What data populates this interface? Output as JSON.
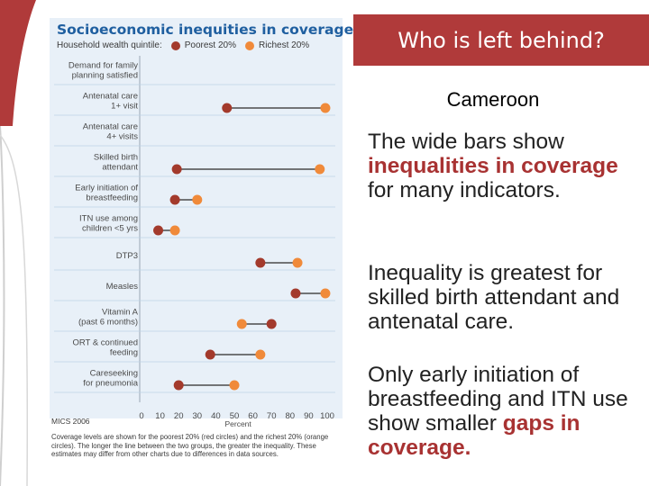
{
  "slide": {
    "title": "Who is left behind?",
    "country": "Cameroon",
    "para1": {
      "pre": "The wide bars show ",
      "hl": "inequalities in coverage",
      "post": " for many indicators."
    },
    "para2": "Inequality is greatest for skilled birth attendant and antenatal care.",
    "para3": {
      "pre": "Only early initiation of breastfeeding and ITN use show smaller ",
      "hl": "gaps in coverage."
    }
  },
  "chart_data": {
    "type": "dumbbell",
    "title": "Socioeconomic inequities in coverage",
    "legend_prefix": "Household wealth quintile:",
    "xlabel": "Percent",
    "xlim": [
      0,
      100
    ],
    "xticks": [
      "0",
      "10",
      "20",
      "30",
      "40",
      "50",
      "60",
      "70",
      "80",
      "90",
      "100"
    ],
    "colors": {
      "poorest": "#a33a2c",
      "richest": "#f08a3a"
    },
    "series": [
      {
        "name": "Poorest 20%"
      },
      {
        "name": "Richest 20%"
      }
    ],
    "rows": [
      {
        "label": [
          "Demand for family",
          "planning satisfied"
        ],
        "poorest": null,
        "richest": null
      },
      {
        "label": [
          "Antenatal care",
          "1+ visit"
        ],
        "poorest": 46,
        "richest": 99
      },
      {
        "label": [
          "Antenatal care",
          "4+ visits"
        ],
        "poorest": null,
        "richest": null
      },
      {
        "label": [
          "Skilled birth",
          "attendant"
        ],
        "poorest": 19,
        "richest": 96
      },
      {
        "label": [
          "Early initiation of",
          "breastfeeding"
        ],
        "poorest": 18,
        "richest": 30
      },
      {
        "label": [
          "ITN use among",
          "children <5 yrs"
        ],
        "poorest": 9,
        "richest": 18
      },
      {
        "label": [
          "DTP3"
        ],
        "poorest": 64,
        "richest": 84
      },
      {
        "label": [
          "Measles"
        ],
        "poorest": 83,
        "richest": 99
      },
      {
        "label": [
          "Vitamin A",
          "(past 6 months)"
        ],
        "poorest": 70,
        "richest": 54
      },
      {
        "label": [
          "ORT & continued",
          "feeding"
        ],
        "poorest": 37,
        "richest": 64
      },
      {
        "label": [
          "Careseeking",
          "for pneumonia"
        ],
        "poorest": 20,
        "richest": 50
      }
    ],
    "source": "MICS 2006",
    "footnote": "Coverage levels are shown for the poorest 20% (red circles) and the richest 20% (orange circles). The longer the line between the two groups, the greater the inequality. These estimates may differ from other charts due to differences in data sources."
  }
}
